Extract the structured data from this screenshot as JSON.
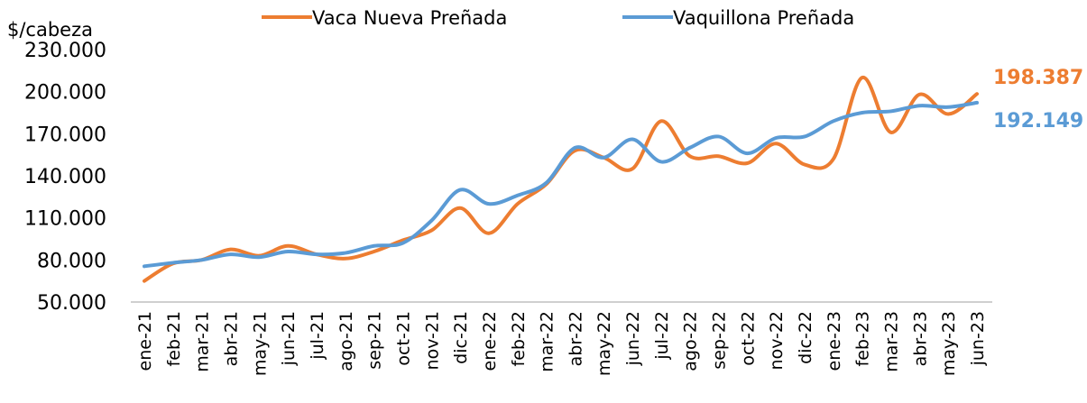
{
  "chart_data": {
    "type": "line",
    "y_label": "$/cabeza",
    "categories": [
      "ene-21",
      "feb-21",
      "mar-21",
      "abr-21",
      "may-21",
      "jun-21",
      "jul-21",
      "ago-21",
      "sep-21",
      "oct-21",
      "nov-21",
      "dic-21",
      "ene-22",
      "feb-22",
      "mar-22",
      "abr-22",
      "may-22",
      "jun-22",
      "jul-22",
      "ago-22",
      "sep-22",
      "oct-22",
      "nov-22",
      "dic-22",
      "ene-23",
      "feb-23",
      "mar-23",
      "abr-23",
      "may-23",
      "jun-23"
    ],
    "series": [
      {
        "name": "Vaca Nueva Preñada",
        "color": "#ed7d31",
        "values": [
          65000,
          77500,
          80000,
          87500,
          83000,
          90000,
          84000,
          81000,
          86000,
          94000,
          101000,
          117000,
          99000,
          120000,
          134000,
          158000,
          153000,
          145000,
          179000,
          154000,
          154000,
          149000,
          163000,
          148000,
          152000,
          210000,
          171000,
          198000,
          184000,
          198387
        ],
        "value_labels": [
          null,
          null,
          null,
          null,
          null,
          null,
          null,
          null,
          null,
          null,
          null,
          null,
          null,
          null,
          null,
          null,
          null,
          null,
          null,
          null,
          null,
          null,
          null,
          null,
          null,
          null,
          null,
          null,
          null,
          "198.387"
        ]
      },
      {
        "name": "Vaquillona Preñada",
        "color": "#5b9bd5",
        "values": [
          75500,
          78000,
          80000,
          84000,
          82000,
          86000,
          84000,
          85000,
          90000,
          92000,
          108000,
          130000,
          120000,
          126000,
          135000,
          160000,
          153000,
          166000,
          150000,
          160000,
          168000,
          156000,
          167000,
          168000,
          179000,
          185000,
          186000,
          190000,
          189000,
          192149
        ],
        "value_labels": [
          null,
          null,
          null,
          null,
          null,
          null,
          null,
          null,
          null,
          null,
          null,
          null,
          null,
          null,
          null,
          null,
          null,
          null,
          null,
          null,
          null,
          null,
          null,
          null,
          null,
          null,
          null,
          null,
          null,
          "192.149"
        ]
      }
    ],
    "ylim": [
      50000,
      230000
    ],
    "yticks": [
      {
        "value": 50000,
        "label": "50.000"
      },
      {
        "value": 80000,
        "label": "80.000"
      },
      {
        "value": 110000,
        "label": "110.000"
      },
      {
        "value": 140000,
        "label": "140.000"
      },
      {
        "value": 170000,
        "label": "170.000"
      },
      {
        "value": 200000,
        "label": "200.000"
      },
      {
        "value": 230000,
        "label": "230.000"
      }
    ],
    "grid": false,
    "legend": "top"
  }
}
